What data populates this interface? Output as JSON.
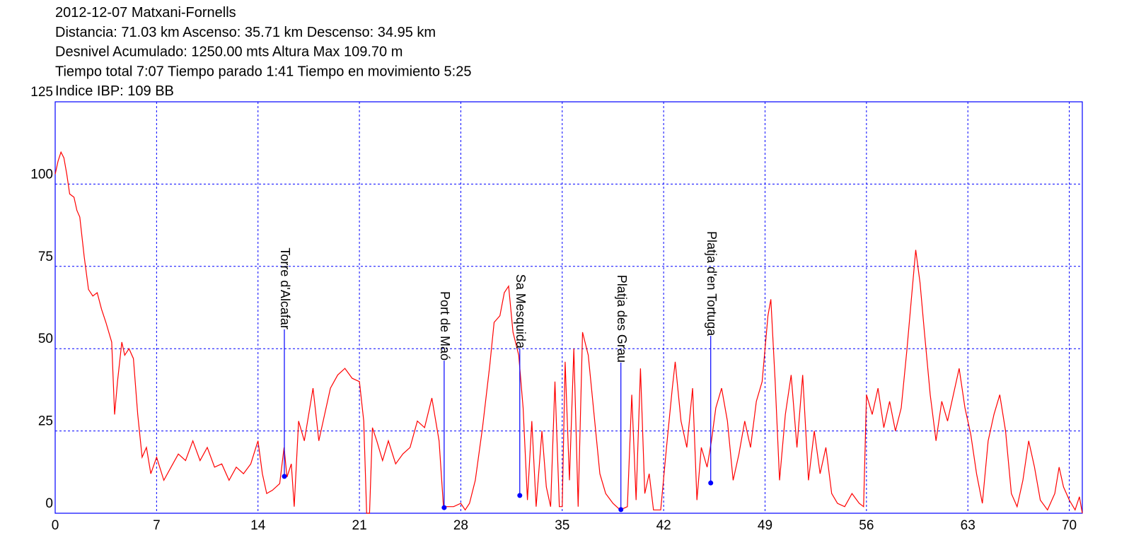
{
  "chart_data": {
    "type": "line",
    "title_lines": [
      "2012-12-07 Matxani-Fornells",
      "Distancia: 71.03 km Ascenso: 35.71 km Descenso: 34.95 km",
      "Desnivel Acumulado: 1250.00 mts  Altura Max 109.70 m",
      "Tiempo total 7:07 Tiempo parado 1:41 Tiempo en movimiento 5:25",
      "Indice IBP: 109 BB"
    ],
    "x": [
      0,
      0.2,
      0.4,
      0.6,
      0.8,
      1.0,
      1.3,
      1.5,
      1.7,
      2.0,
      2.3,
      2.6,
      2.9,
      3.2,
      3.5,
      3.9,
      4.1,
      4.3,
      4.6,
      4.8,
      5.1,
      5.4,
      5.7,
      6.0,
      6.3,
      6.6,
      7.0,
      7.5,
      8.0,
      8.5,
      9.0,
      9.5,
      10.0,
      10.5,
      11.0,
      11.5,
      12.0,
      12.5,
      13.0,
      13.5,
      14.0,
      14.3,
      14.6,
      15.0,
      15.5,
      15.8,
      16.0,
      16.3,
      16.5,
      16.8,
      17.2,
      17.5,
      17.8,
      18.2,
      18.6,
      19.0,
      19.5,
      20.0,
      20.5,
      21.0,
      21.3,
      21.5,
      21.7,
      21.9,
      22.2,
      22.6,
      23.0,
      23.5,
      24.0,
      24.5,
      25.0,
      25.5,
      26.0,
      26.5,
      26.8,
      27.5,
      28.0,
      28.3,
      28.6,
      29.0,
      29.5,
      30.0,
      30.3,
      30.7,
      31.0,
      31.3,
      31.6,
      32.0,
      32.3,
      32.6,
      32.9,
      33.2,
      33.6,
      33.9,
      34.2,
      34.5,
      34.8,
      35.0,
      35.2,
      35.5,
      35.8,
      36.1,
      36.4,
      36.8,
      37.2,
      37.6,
      38.0,
      38.5,
      39.0,
      39.5,
      39.8,
      40.1,
      40.4,
      40.7,
      41.0,
      41.3,
      41.8,
      42.2,
      42.6,
      42.8,
      43.2,
      43.6,
      44.0,
      44.3,
      44.6,
      45.0,
      45.3,
      45.6,
      46.0,
      46.4,
      46.8,
      47.2,
      47.6,
      48.0,
      48.4,
      48.8,
      49.2,
      49.4,
      49.7,
      50.0,
      50.4,
      50.8,
      51.2,
      51.6,
      52.0,
      52.4,
      52.8,
      53.2,
      53.6,
      54.0,
      54.5,
      55.0,
      55.5,
      55.8,
      56.0,
      56.4,
      56.8,
      57.2,
      57.6,
      58.0,
      58.4,
      58.8,
      59.1,
      59.4,
      59.7,
      60.0,
      60.4,
      60.8,
      61.2,
      61.6,
      62.0,
      62.4,
      62.8,
      63.2,
      63.6,
      64.0,
      64.4,
      64.8,
      65.2,
      65.6,
      66.0,
      66.4,
      66.8,
      67.2,
      67.6,
      68.0,
      68.5,
      69.0,
      69.3,
      69.6,
      70.0,
      70.4,
      70.7,
      70.9
    ],
    "values": [
      103,
      107,
      109.7,
      108,
      103,
      97,
      96,
      92,
      90,
      78,
      68,
      66,
      67,
      62,
      58,
      52,
      30,
      40,
      52,
      48,
      50,
      47,
      30,
      17,
      20,
      12,
      17,
      10,
      14,
      18,
      16,
      22,
      16,
      20,
      14,
      15,
      10,
      14,
      12,
      15,
      22,
      12,
      6,
      7,
      9,
      20,
      11,
      15,
      2,
      28,
      22,
      30,
      38,
      22,
      30,
      38,
      42,
      44,
      41,
      40,
      28,
      0,
      0,
      26,
      22,
      16,
      22,
      15,
      18,
      20,
      28,
      26,
      35,
      22,
      2,
      2,
      3,
      1,
      3,
      10,
      26,
      45,
      58,
      60,
      67,
      69,
      55,
      48,
      32,
      4,
      28,
      2,
      25,
      8,
      2,
      40,
      2,
      2,
      46,
      10,
      50,
      2,
      55,
      48,
      30,
      12,
      6,
      3,
      1,
      2,
      36,
      4,
      44,
      6,
      12,
      1,
      1,
      20,
      38,
      46,
      28,
      20,
      38,
      4,
      20,
      14,
      22,
      32,
      38,
      28,
      10,
      18,
      28,
      20,
      34,
      40,
      60,
      65,
      40,
      10,
      30,
      42,
      20,
      42,
      10,
      25,
      12,
      20,
      6,
      3,
      2,
      6,
      3,
      2,
      36,
      30,
      38,
      26,
      34,
      25,
      32,
      50,
      65,
      80,
      70,
      55,
      36,
      22,
      34,
      28,
      36,
      44,
      32,
      24,
      12,
      3,
      22,
      30,
      36,
      25,
      6,
      2,
      10,
      22,
      14,
      4,
      1,
      6,
      14,
      8,
      4,
      1,
      5,
      0
    ],
    "color": "#ff0000",
    "waypoints": [
      {
        "label": "Torre d'Alcafar",
        "x": 15.82,
        "y": 11.2
      },
      {
        "label": "Port de Maó",
        "x": 26.85,
        "y": 1.7
      },
      {
        "label": "Sa Mesquida",
        "x": 32.07,
        "y": 5.4
      },
      {
        "label": "Platja des Grau",
        "x": 39.05,
        "y": 1.1
      },
      {
        "label": "Platja d'en Tortuga",
        "x": 45.25,
        "y": 9.2
      }
    ],
    "waypoint_color": "#0000ff",
    "xlim": [
      0,
      70.9
    ],
    "ylim": [
      0,
      125
    ],
    "xticks": [
      0,
      7,
      14,
      21,
      28,
      35,
      42,
      49,
      56,
      63,
      70
    ],
    "yticks": [
      0,
      25,
      50,
      75,
      100,
      125
    ],
    "grid": true,
    "grid_color": "#0000ff"
  }
}
